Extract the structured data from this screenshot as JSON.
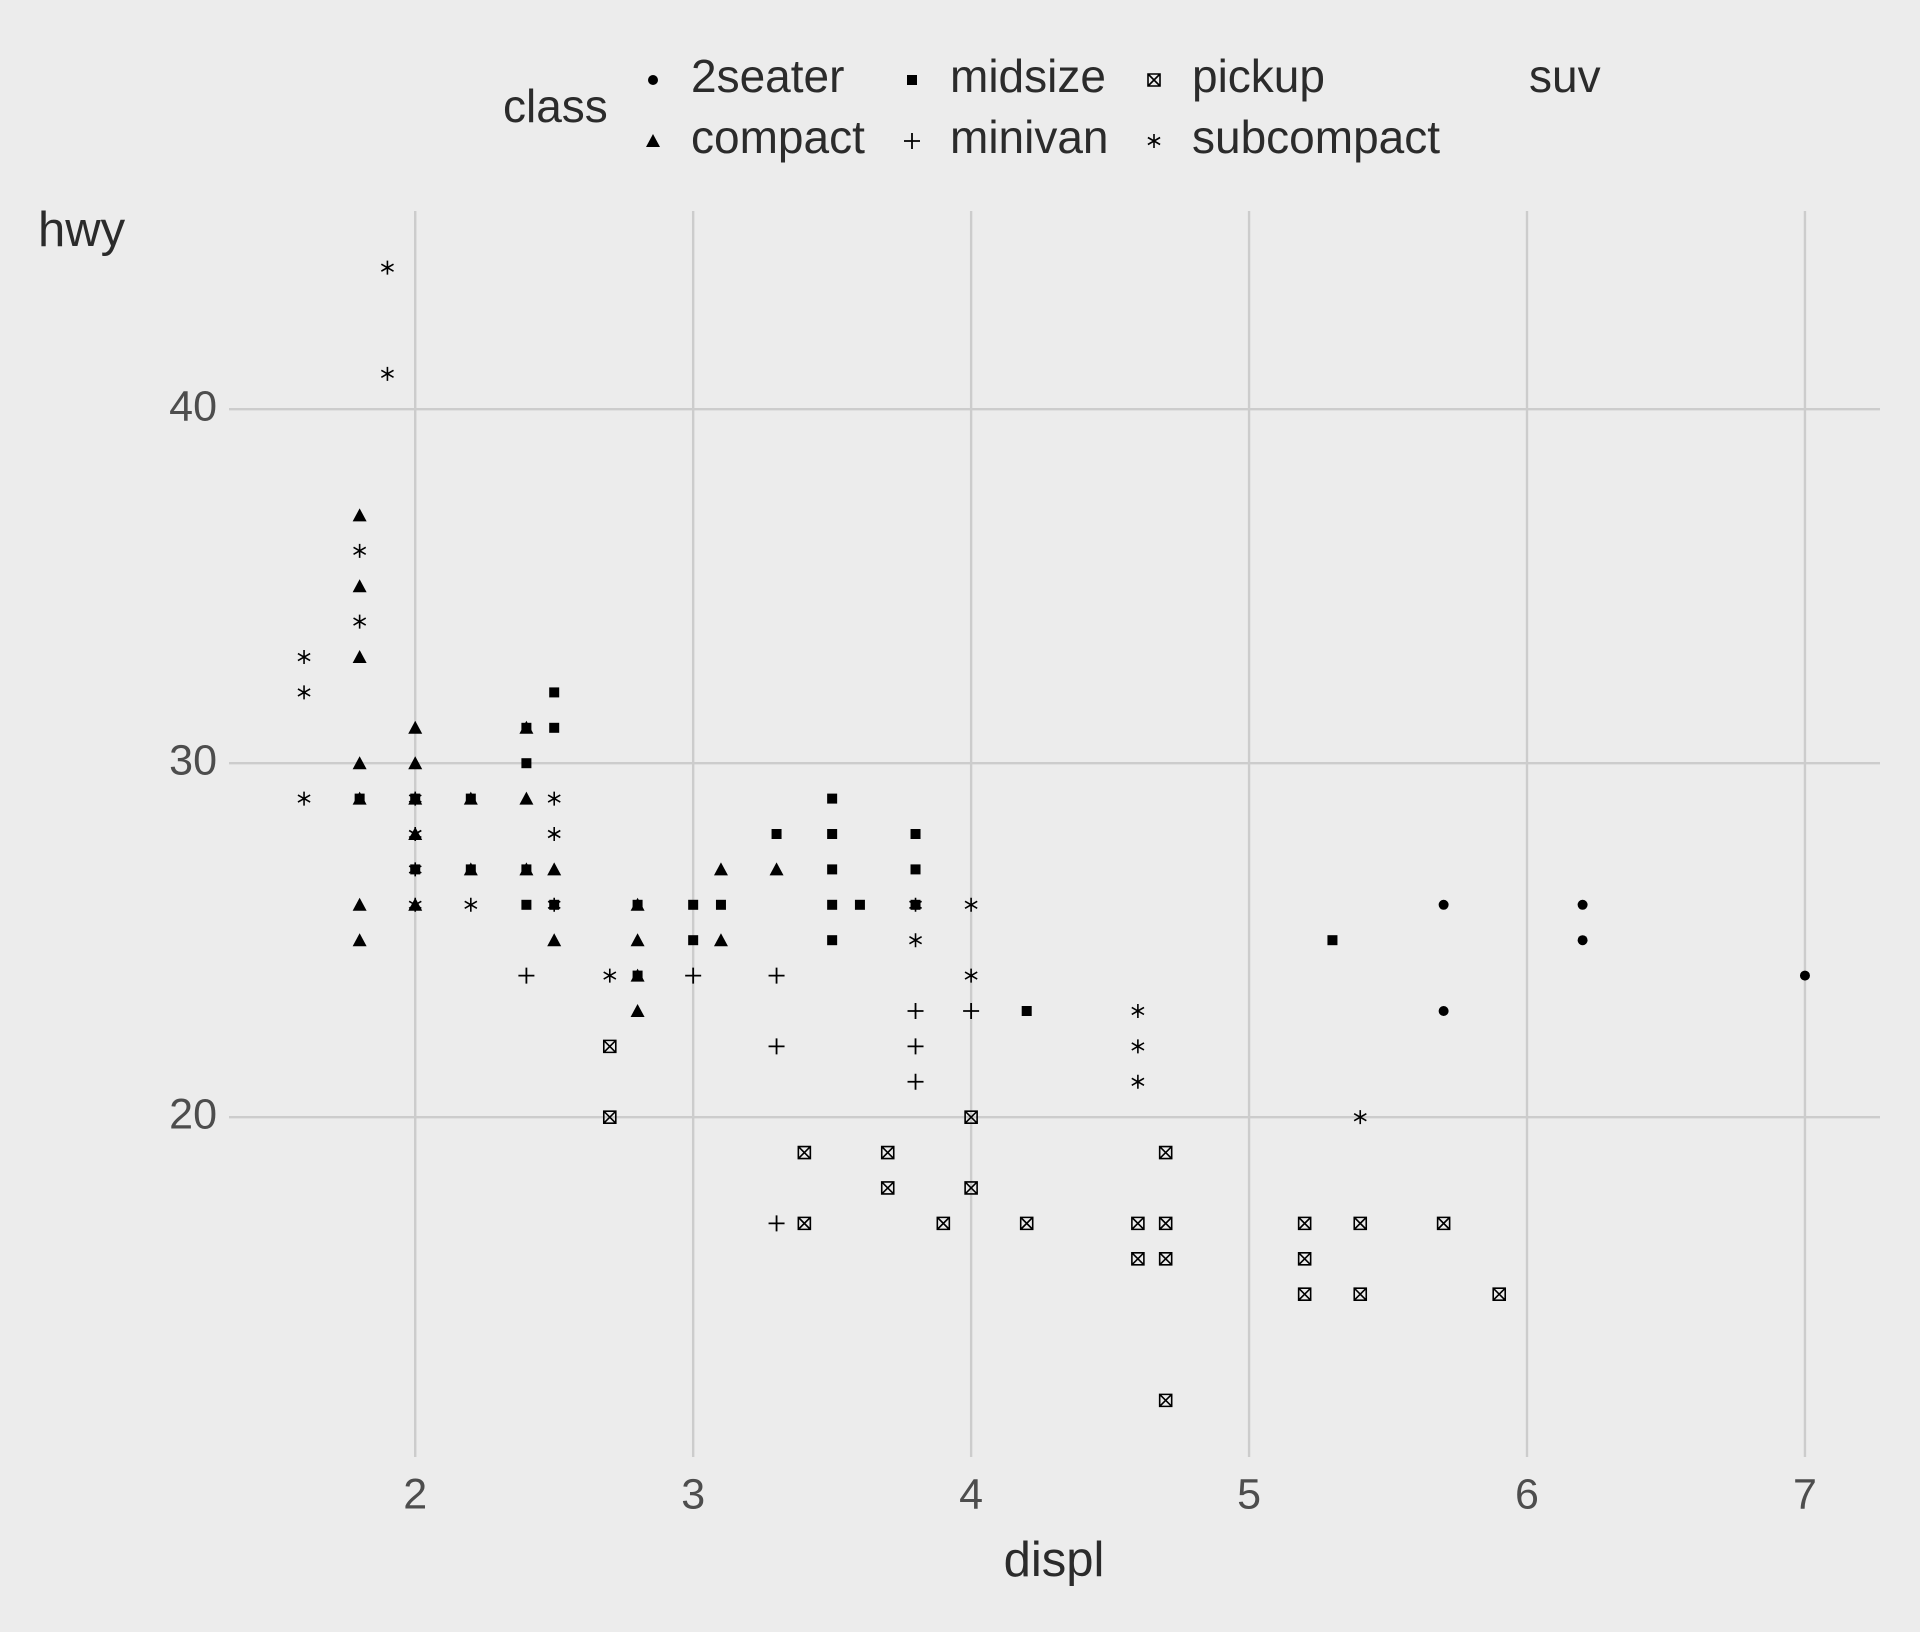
{
  "chart_data": {
    "type": "scatter",
    "xlabel": "displ",
    "ylabel": "hwy",
    "legend_title": "class",
    "legend": "top",
    "xlim": [
      1.33,
      7.27
    ],
    "ylim": [
      10.4,
      45.6
    ],
    "xticks": [
      2,
      3,
      4,
      5,
      6,
      7
    ],
    "yticks": [
      20,
      30,
      40
    ],
    "grid": true,
    "series": [
      {
        "name": "2seater",
        "color": "#000000",
        "shape": "circle",
        "x": [
          5.7,
          5.7,
          6.2,
          6.2,
          7
        ],
        "values": [
          26,
          23,
          26,
          25,
          24
        ]
      },
      {
        "name": "compact",
        "color": "#000000",
        "shape": "triangle",
        "x": [
          1.8,
          1.8,
          1.8,
          1.8,
          1.8,
          1.8,
          1.8,
          2,
          2,
          2,
          2,
          2,
          2.2,
          2.2,
          2.4,
          2.4,
          2.4,
          2.5,
          2.5,
          2.8,
          2.8,
          2.8,
          2.8,
          3.1,
          3.1,
          3.3
        ],
        "values": [
          37,
          35,
          33,
          30,
          29,
          26,
          25,
          31,
          30,
          29,
          28,
          26,
          29,
          27,
          31,
          29,
          27,
          27,
          25,
          26,
          25,
          24,
          23,
          27,
          25,
          27
        ]
      },
      {
        "name": "midsize",
        "color": "#000000",
        "shape": "square",
        "x": [
          1.8,
          2,
          2,
          2.2,
          2.2,
          2.4,
          2.4,
          2.4,
          2.4,
          2.5,
          2.5,
          2.5,
          2.8,
          2.8,
          3,
          3,
          3.1,
          3.3,
          3.5,
          3.5,
          3.5,
          3.5,
          3.5,
          3.6,
          3.8,
          3.8,
          3.8,
          4.2,
          5.3
        ],
        "values": [
          29,
          29,
          27,
          29,
          27,
          31,
          30,
          27,
          26,
          32,
          31,
          26,
          26,
          24,
          26,
          25,
          26,
          28,
          29,
          28,
          27,
          26,
          25,
          26,
          28,
          27,
          26,
          23,
          25
        ]
      },
      {
        "name": "minivan",
        "color": "#000000",
        "shape": "plus",
        "x": [
          2.4,
          3,
          3.3,
          3.3,
          3.3,
          3.8,
          3.8,
          3.8,
          4
        ],
        "values": [
          24,
          24,
          24,
          22,
          17,
          23,
          22,
          21,
          23
        ]
      },
      {
        "name": "pickup",
        "color": "#000000",
        "shape": "square-cross",
        "x": [
          2.7,
          2.7,
          3.4,
          3.4,
          3.7,
          3.7,
          3.9,
          4,
          4,
          4.2,
          4.6,
          4.6,
          4.7,
          4.7,
          4.7,
          4.7,
          5.2,
          5.2,
          5.2,
          5.4,
          5.4,
          5.7,
          5.9
        ],
        "values": [
          22,
          20,
          19,
          17,
          19,
          18,
          17,
          20,
          18,
          17,
          17,
          16,
          19,
          17,
          16,
          12,
          17,
          16,
          15,
          17,
          15,
          17,
          15
        ]
      },
      {
        "name": "subcompact",
        "color": "#000000",
        "shape": "asterisk",
        "x": [
          1.6,
          1.6,
          1.6,
          1.8,
          1.8,
          1.9,
          1.9,
          2,
          2,
          2,
          2,
          2.2,
          2.5,
          2.5,
          2.5,
          2.7,
          3.8,
          3.8,
          4,
          4,
          4.6,
          4.6,
          4.6,
          5.4
        ],
        "values": [
          33,
          32,
          29,
          36,
          34,
          44,
          41,
          29,
          28,
          27,
          26,
          26,
          29,
          28,
          26,
          24,
          26,
          25,
          26,
          24,
          23,
          22,
          21,
          20
        ]
      },
      {
        "name": "suv",
        "color": "#000000",
        "x": [],
        "values": []
      }
    ]
  }
}
